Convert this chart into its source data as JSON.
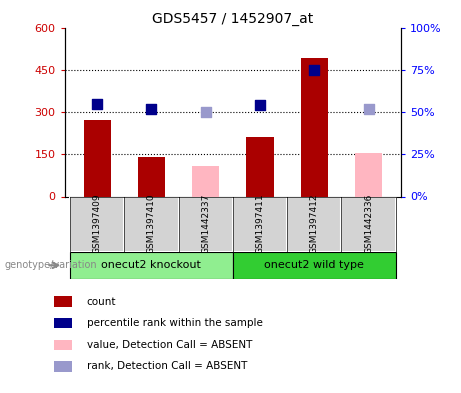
{
  "title": "GDS5457 / 1452907_at",
  "samples": [
    "GSM1397409",
    "GSM1397410",
    "GSM1442337",
    "GSM1397411",
    "GSM1397412",
    "GSM1442336"
  ],
  "count_values": [
    270,
    140,
    110,
    210,
    490,
    155
  ],
  "count_absent": [
    false,
    false,
    true,
    false,
    false,
    true
  ],
  "percentile_values": [
    55,
    52,
    50,
    54,
    75,
    52
  ],
  "percentile_absent": [
    false,
    false,
    true,
    false,
    false,
    true
  ],
  "left_ylim": [
    0,
    600
  ],
  "right_ylim": [
    0,
    100
  ],
  "left_yticks": [
    0,
    150,
    300,
    450,
    600
  ],
  "right_yticks": [
    0,
    25,
    50,
    75,
    100
  ],
  "groups": [
    {
      "label": "onecut2 knockout",
      "start": 0,
      "end": 3
    },
    {
      "label": "onecut2 wild type",
      "start": 3,
      "end": 6
    }
  ],
  "bar_color_present": "#AA0000",
  "bar_color_absent": "#FFB6C1",
  "dot_color_present": "#00008B",
  "dot_color_absent": "#9999CC",
  "dot_size": 50,
  "bar_width": 0.5,
  "grid_color": "black",
  "grid_style": "dotted",
  "sample_box_color": "#D3D3D3",
  "group_colors": [
    "#90EE90",
    "#32CD32"
  ],
  "genotype_label": "genotype/variation",
  "legend_items": [
    {
      "label": "count",
      "color": "#AA0000"
    },
    {
      "label": "percentile rank within the sample",
      "color": "#00008B"
    },
    {
      "label": "value, Detection Call = ABSENT",
      "color": "#FFB6C1"
    },
    {
      "label": "rank, Detection Call = ABSENT",
      "color": "#9999CC"
    }
  ]
}
